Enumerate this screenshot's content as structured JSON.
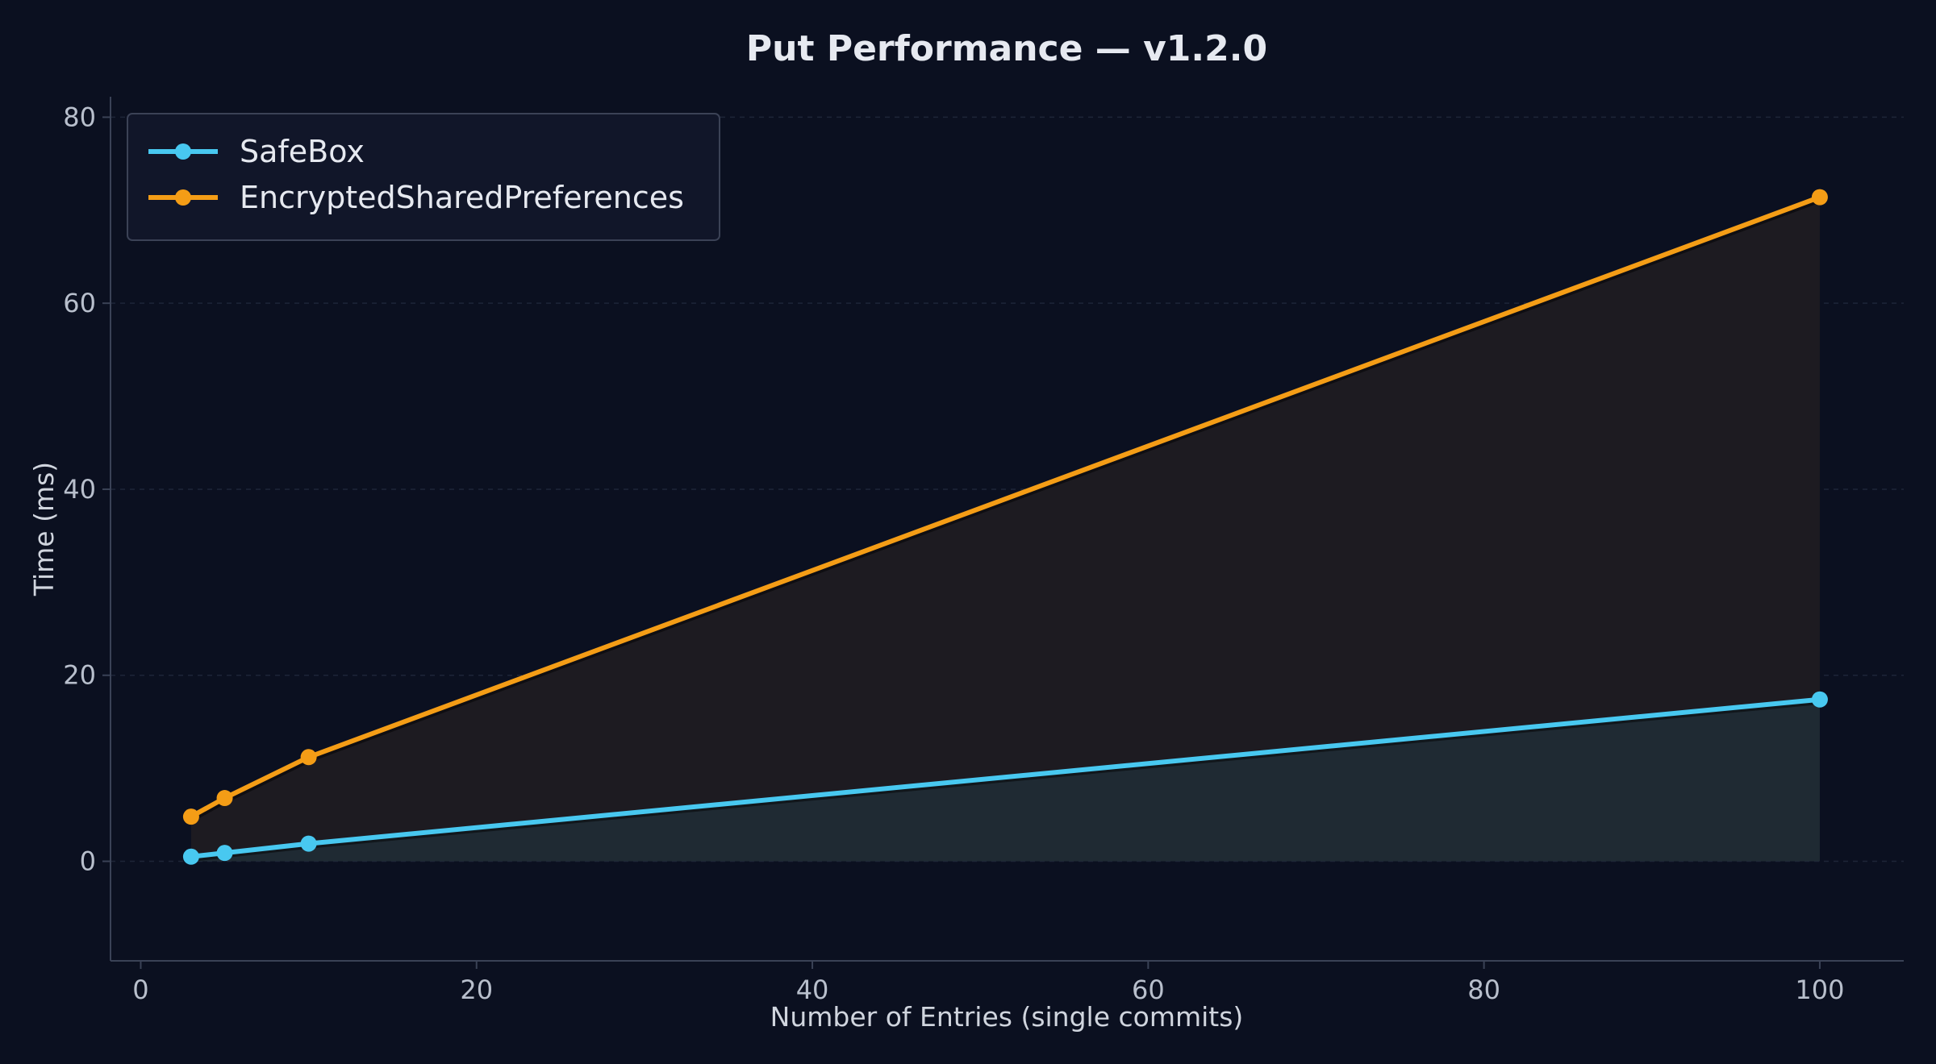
{
  "chart_data": {
    "type": "line",
    "title": "Put Performance — v1.2.0",
    "xlabel": "Number of Entries (single commits)",
    "ylabel": "Time (ms)",
    "x": [
      3,
      5,
      10,
      100
    ],
    "xlim": [
      -1.8,
      105
    ],
    "ylim": [
      -10.7,
      82.2
    ],
    "xticks": [
      0,
      20,
      40,
      60,
      80,
      100
    ],
    "yticks": [
      0,
      20,
      40,
      60,
      80
    ],
    "grid": "horizontal dashed",
    "legend_position": "top-left",
    "series": [
      {
        "name": "SafeBox",
        "values": [
          0.5,
          0.9,
          1.9,
          17.4
        ],
        "color": "#48c8f0",
        "fill": "#1f2a33"
      },
      {
        "name": "EncryptedSharedPreferences",
        "values": [
          4.8,
          6.8,
          11.2,
          71.4
        ],
        "color": "#f49d16",
        "fill": "#1d1b21"
      }
    ],
    "colors": {
      "background": "#0b1020",
      "grid": "#1e2538",
      "spine": "#3a4256",
      "legend_bg": "#111629",
      "legend_border": "#3b4256"
    }
  }
}
